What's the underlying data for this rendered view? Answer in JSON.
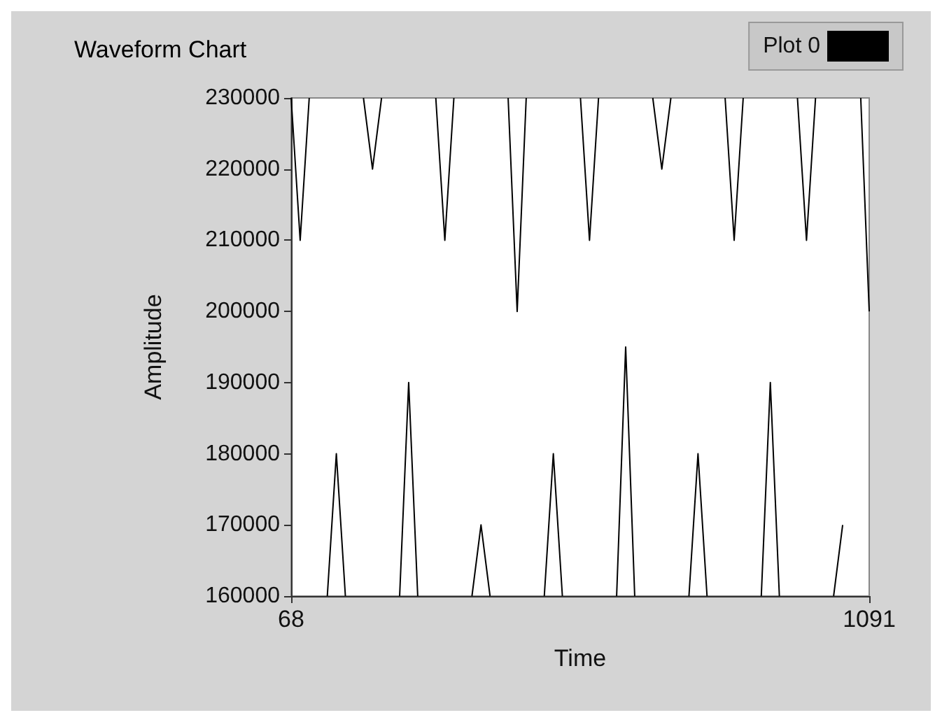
{
  "chart_data": {
    "type": "line",
    "title": "Waveform Chart",
    "xlabel": "Time",
    "ylabel": "Amplitude",
    "x": [
      68,
      84,
      100,
      116,
      132,
      148,
      164,
      180,
      196,
      212,
      228,
      244,
      260,
      276,
      292,
      308,
      324,
      340,
      356,
      372,
      388,
      404,
      420,
      436,
      452,
      468,
      484,
      500,
      516,
      532,
      548,
      564,
      580,
      596,
      612,
      628,
      644,
      660,
      676,
      692,
      708,
      724,
      740,
      756,
      772,
      788,
      804,
      820,
      836,
      852,
      868,
      884,
      900,
      916,
      932,
      948,
      964,
      980,
      996,
      1012,
      1028,
      1044,
      1060,
      1076,
      1091
    ],
    "series": [
      {
        "name": "Plot 0",
        "color": "#000000",
        "values": [
          230000,
          210000,
          230000,
          null,
          160000,
          180000,
          160000,
          null,
          230000,
          220000,
          230000,
          null,
          160000,
          190000,
          160000,
          null,
          230000,
          210000,
          230000,
          null,
          160000,
          170000,
          160000,
          null,
          230000,
          200000,
          230000,
          null,
          160000,
          180000,
          160000,
          null,
          230000,
          210000,
          230000,
          null,
          160000,
          195000,
          160000,
          null,
          230000,
          220000,
          230000,
          null,
          160000,
          180000,
          160000,
          null,
          230000,
          210000,
          230000,
          null,
          160000,
          190000,
          160000,
          null,
          230000,
          210000,
          230000,
          null,
          160000,
          170000,
          null,
          230000,
          200000
        ]
      }
    ],
    "xlim": [
      68,
      1091
    ],
    "xticks": [
      68,
      1091
    ],
    "ylim": [
      160000,
      230000
    ],
    "yticks": [
      160000,
      170000,
      180000,
      190000,
      200000,
      210000,
      220000,
      230000
    ],
    "grid": false,
    "legend": "top right",
    "marker": "none",
    "line_style": "solid"
  }
}
